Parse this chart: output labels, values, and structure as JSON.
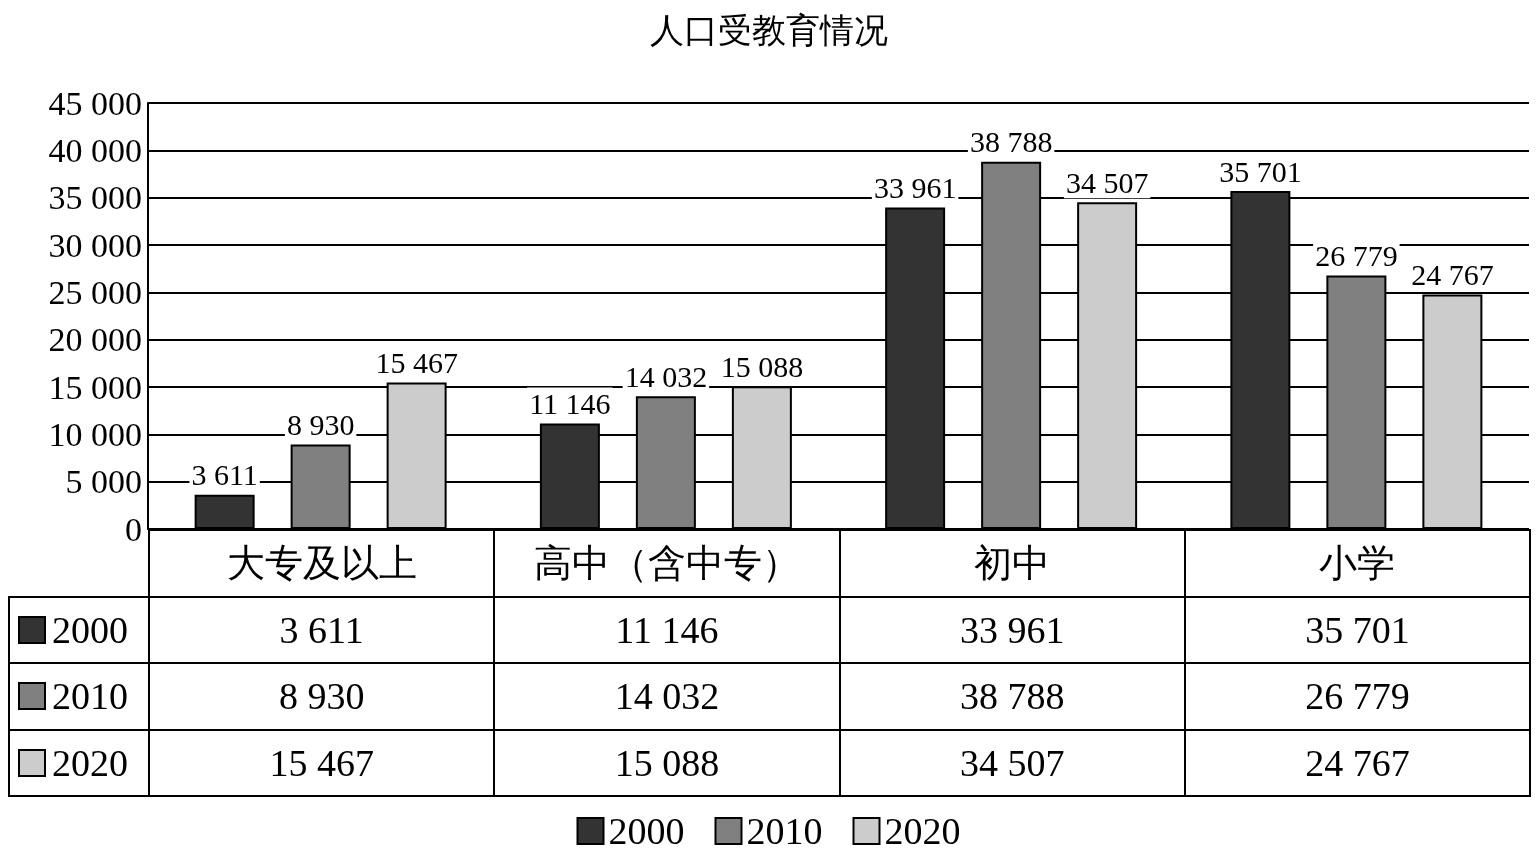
{
  "chart_data": {
    "type": "bar",
    "title": "人口受教育情况",
    "categories": [
      "大专及以上",
      "高中（含中专）",
      "初中",
      "小学"
    ],
    "series": [
      {
        "name": "2000",
        "color": "#333333",
        "values": [
          3611,
          11146,
          33961,
          35701
        ],
        "value_labels": [
          "3 611",
          "11 146",
          "33 961",
          "35 701"
        ]
      },
      {
        "name": "2010",
        "color": "#808080",
        "values": [
          8930,
          14032,
          38788,
          26779
        ],
        "value_labels": [
          "8 930",
          "14 032",
          "38 788",
          "26 779"
        ]
      },
      {
        "name": "2020",
        "color": "#cccccc",
        "values": [
          15467,
          15088,
          34507,
          24767
        ],
        "value_labels": [
          "15 467",
          "15 088",
          "34 507",
          "24 767"
        ]
      }
    ],
    "ylim": [
      0,
      45000
    ],
    "yticks": [
      {
        "value": 0,
        "label": "0"
      },
      {
        "value": 5000,
        "label": "5 000"
      },
      {
        "value": 10000,
        "label": "10 000"
      },
      {
        "value": 15000,
        "label": "15 000"
      },
      {
        "value": 20000,
        "label": "20 000"
      },
      {
        "value": 25000,
        "label": "25 000"
      },
      {
        "value": 30000,
        "label": "30 000"
      },
      {
        "value": 35000,
        "label": "35 000"
      },
      {
        "value": 40000,
        "label": "40 000"
      },
      {
        "value": 45000,
        "label": "45 000"
      }
    ],
    "grid": "y",
    "legend": "bottom"
  }
}
